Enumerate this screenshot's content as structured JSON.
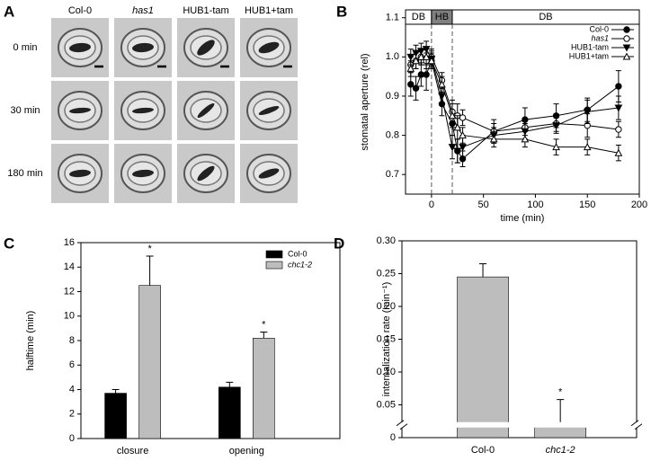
{
  "panel_a": {
    "panel": "A",
    "columns": [
      "Col-0",
      "has1",
      "HUB1-tam",
      "HUB1+tam"
    ],
    "rows": [
      "0 min",
      "30 min",
      "180 min"
    ]
  },
  "chart_data": [
    {
      "type": "line",
      "panel": "B",
      "x_label": "time (min)",
      "y_label": "stomatal aperture (rel)",
      "x": [
        -20,
        -15,
        -10,
        -5,
        0,
        10,
        20,
        25,
        30,
        60,
        90,
        120,
        150,
        180
      ],
      "series": [
        {
          "name": "Col-0",
          "color": "#000000",
          "marker": "circle-filled",
          "values": [
            0.93,
            0.92,
            0.955,
            0.955,
            0.99,
            0.88,
            0.83,
            0.76,
            0.74,
            0.81,
            0.84,
            0.85,
            0.865,
            0.925
          ],
          "errors": [
            0.03,
            0.03,
            0.03,
            0.04,
            0.02,
            0.03,
            0.03,
            0.03,
            0.02,
            0.03,
            0.03,
            0.03,
            0.03,
            0.04
          ]
        },
        {
          "name": "has1",
          "color": "#000000",
          "marker": "circle-open",
          "font_style": "italic",
          "values": [
            0.98,
            0.99,
            1.0,
            0.99,
            1.0,
            0.94,
            0.86,
            0.85,
            0.845,
            0.81,
            0.82,
            0.83,
            0.825,
            0.815
          ],
          "errors": [
            0.02,
            0.02,
            0.02,
            0.02,
            0.02,
            0.02,
            0.03,
            0.03,
            0.02,
            0.02,
            0.02,
            0.02,
            0.03,
            0.02
          ]
        },
        {
          "name": "HUB1-tam",
          "color": "#000000",
          "marker": "triangle-down-filled",
          "values": [
            1.0,
            1.01,
            1.015,
            1.02,
            0.995,
            0.9,
            0.77,
            0.76,
            0.77,
            0.8,
            0.81,
            0.825,
            0.86,
            0.87
          ],
          "errors": [
            0.02,
            0.02,
            0.02,
            0.02,
            0.02,
            0.02,
            0.03,
            0.03,
            0.03,
            0.02,
            0.02,
            0.02,
            0.03,
            0.03
          ]
        },
        {
          "name": "HUB1+tam",
          "color": "#000000",
          "marker": "triangle-up-open",
          "values": [
            0.97,
            0.99,
            1.0,
            1.0,
            0.99,
            0.93,
            0.85,
            0.82,
            0.8,
            0.79,
            0.79,
            0.77,
            0.77,
            0.755
          ],
          "errors": [
            0.02,
            0.02,
            0.02,
            0.02,
            0.02,
            0.02,
            0.03,
            0.03,
            0.02,
            0.02,
            0.02,
            0.02,
            0.02,
            0.02
          ]
        }
      ],
      "bands": [
        {
          "label": "DB",
          "from": -25,
          "to": 0,
          "color": "#ffffff"
        },
        {
          "label": "HB",
          "from": 0,
          "to": 20,
          "color": "#808080"
        },
        {
          "label": "DB",
          "from": 20,
          "to": 200,
          "color": "#ffffff"
        }
      ],
      "xlim": [
        -25,
        200
      ],
      "xticks": [
        0,
        50,
        100,
        150,
        200
      ],
      "ylim": [
        0.65,
        1.12
      ],
      "yticks": [
        0.7,
        0.8,
        0.9,
        {
          "value": 1.0,
          "label": "1.0"
        },
        1.1
      ],
      "legend": "top-right"
    },
    {
      "type": "bar",
      "panel": "C",
      "y_label": "halftime (min)",
      "categories": [
        "closure",
        "opening"
      ],
      "series": [
        {
          "name": "Col-0",
          "color": "#000000",
          "values": [
            3.7,
            4.2
          ],
          "errors": [
            0.3,
            0.4
          ]
        },
        {
          "name": "chc1-2",
          "color": "#bdbdbd",
          "font_style": "italic",
          "values": [
            12.5,
            8.2
          ],
          "errors": [
            2.4,
            0.5
          ],
          "significance": [
            "*",
            "*"
          ]
        }
      ],
      "ylim": [
        0,
        16
      ],
      "yticks": [
        0,
        2,
        4,
        6,
        8,
        10,
        12,
        14,
        16
      ],
      "legend": "top-right"
    },
    {
      "type": "bar",
      "panel": "D",
      "y_label": "internalization rate (min⁻¹)",
      "categories": [
        "Col-0",
        "chc1-2"
      ],
      "category_styles": [
        "normal",
        "italic"
      ],
      "series": [
        {
          "color": "#bdbdbd",
          "values": [
            0.245,
            0.02
          ],
          "errors": [
            0.02,
            0.038
          ],
          "significance": [
            null,
            "*"
          ]
        }
      ],
      "ylim": [
        0,
        0.3
      ],
      "yticks": [
        0,
        0.05,
        {
          "value": 0.1,
          "label": "0.10"
        },
        0.15,
        {
          "value": 0.2,
          "label": "0.20"
        },
        0.25,
        {
          "value": 0.3,
          "label": "0.30"
        }
      ],
      "axis_break": true
    }
  ]
}
